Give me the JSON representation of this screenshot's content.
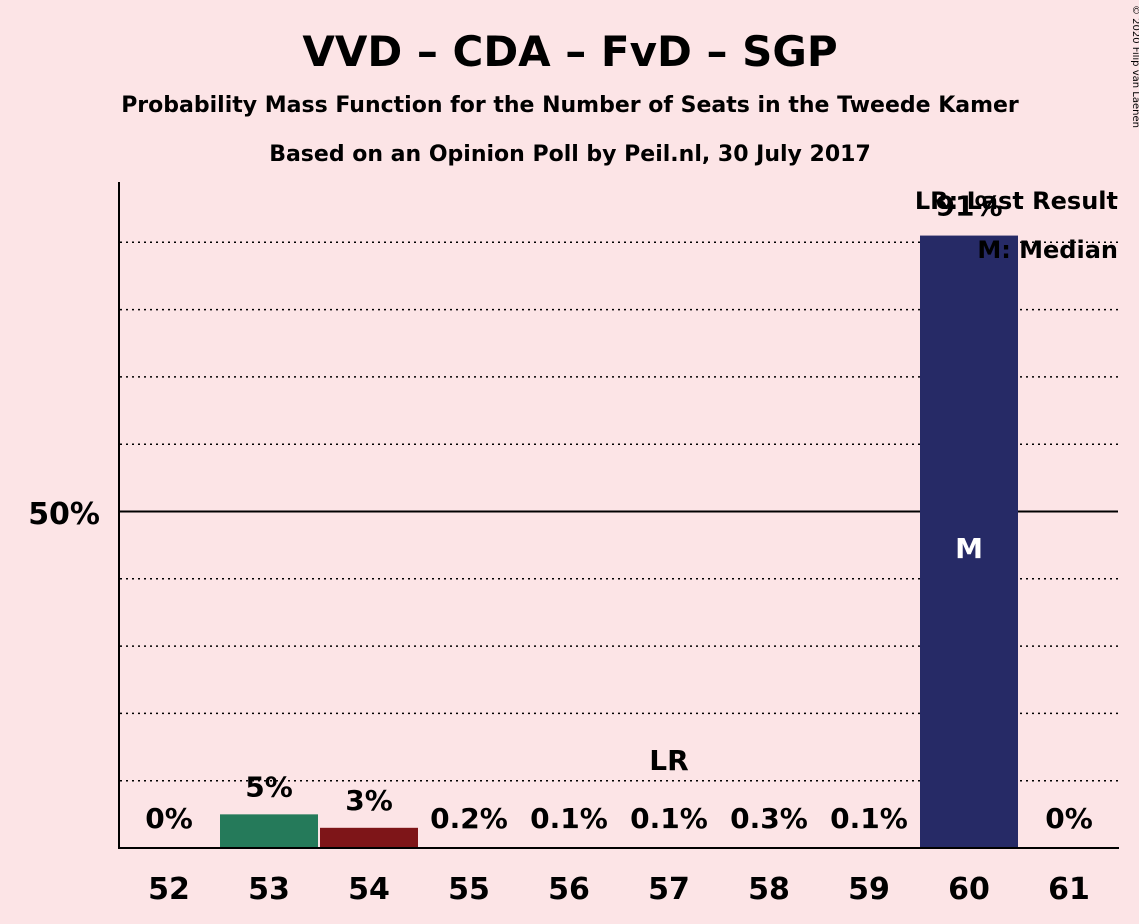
{
  "title": "VVD – CDA – FvD – SGP",
  "subtitle1": "Probability Mass Function for the Number of Seats in the Tweede Kamer",
  "subtitle2": "Based on an Opinion Poll by Peil.nl, 30 July 2017",
  "copyright": "© 2020 Filip van Laenen",
  "legend": {
    "lr": "LR: Last Result",
    "m": "M: Median"
  },
  "y_tick_label": "50%",
  "markers": {
    "last_result": "LR",
    "median": "M"
  },
  "chart_data": {
    "type": "bar",
    "categories": [
      "52",
      "53",
      "54",
      "55",
      "56",
      "57",
      "58",
      "59",
      "60",
      "61"
    ],
    "values": [
      0,
      5,
      3,
      0.2,
      0.1,
      0.1,
      0.3,
      0.1,
      91,
      0
    ],
    "labels": [
      "0%",
      "5%",
      "3%",
      "0.2%",
      "0.1%",
      "0.1%",
      "0.3%",
      "0.1%",
      "91%",
      "0%"
    ],
    "colors": [
      "#257A5A",
      "#257A5A",
      "#7E1518",
      "#7E1518",
      "#7E1518",
      "#7E1518",
      "#7E1518",
      "#7E1518",
      "#262A66",
      "#262A66"
    ],
    "last_result_category": "57",
    "median_category": "60",
    "ylim": [
      0,
      100
    ],
    "y_ticks": [
      50
    ],
    "gridlines_every": 10,
    "legend_position": "top-right"
  }
}
